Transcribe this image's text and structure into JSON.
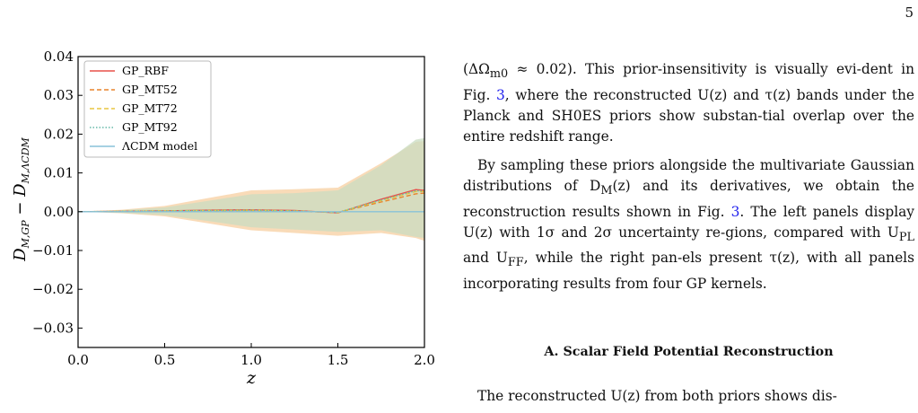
{
  "page": {
    "number": "5"
  },
  "figure": {
    "chart_data": {
      "type": "line",
      "xlabel": "z",
      "ylabel": "D_{M,GP} − D_{M,ΛCDM}",
      "xlim": [
        0.0,
        2.0
      ],
      "ylim": [
        -0.035,
        0.04
      ],
      "xticks": [
        "0.0",
        "0.5",
        "1.0",
        "1.5",
        "2.0"
      ],
      "yticks": [
        "0.04",
        "0.03",
        "0.02",
        "0.01",
        "0.00",
        "−0.01",
        "−0.02",
        "−0.03"
      ],
      "legend_position": "top-left",
      "x": [
        0.0,
        0.25,
        0.5,
        0.75,
        1.0,
        1.25,
        1.5,
        1.75,
        1.95,
        2.0
      ],
      "series": [
        {
          "name": "GP_RBF",
          "color": "#e8504a",
          "dash": "solid",
          "values": [
            0,
            0.0001,
            0.0002,
            0.0004,
            0.0005,
            0.0003,
            -0.0003,
            0.0032,
            0.0057,
            0.0055
          ]
        },
        {
          "name": "GP_MT52",
          "color": "#e8842a",
          "dash": "dashed",
          "values": [
            0,
            0.0,
            0.0001,
            0.0002,
            0.0003,
            0.0001,
            -0.0002,
            0.0025,
            0.0046,
            0.0048
          ]
        },
        {
          "name": "GP_MT72",
          "color": "#e8c640",
          "dash": "dashed",
          "values": [
            0,
            0.0001,
            0.0002,
            0.0003,
            0.0004,
            0.0002,
            -0.0002,
            0.0029,
            0.0052,
            0.0052
          ]
        },
        {
          "name": "GP_MT92",
          "color": "#67b9a8",
          "dash": "dotted",
          "values": [
            0,
            0.0001,
            0.0002,
            0.0003,
            0.0004,
            0.0002,
            -0.0002,
            0.003,
            0.0054,
            0.0053
          ]
        },
        {
          "name": "ΛCDM model",
          "color": "#88c2d8",
          "dash": "solid",
          "values": [
            0,
            0,
            0,
            0,
            0,
            0,
            0,
            0,
            0,
            0
          ]
        }
      ],
      "bands": [
        {
          "color": "#f7cfa0",
          "upper": [
            0,
            0.0005,
            0.0015,
            0.0035,
            0.0055,
            0.0058,
            0.0062,
            0.0125,
            0.018,
            0.0182
          ],
          "lower": [
            0,
            -0.0004,
            -0.0012,
            -0.003,
            -0.0048,
            -0.0055,
            -0.0062,
            -0.0055,
            -0.0068,
            -0.0075
          ]
        },
        {
          "color": "#c9dcc1",
          "upper": [
            0,
            0.0004,
            0.0011,
            0.0028,
            0.0045,
            0.0048,
            0.0055,
            0.012,
            0.0186,
            0.019
          ],
          "lower": [
            0,
            -0.0003,
            -0.0009,
            -0.0024,
            -0.004,
            -0.0046,
            -0.0052,
            -0.0048,
            -0.0065,
            -0.0068
          ]
        }
      ]
    }
  },
  "text": {
    "p1_a": "(ΔΩ",
    "p1_sub": "m0",
    "p1_b": " ≈ 0.02). This prior-insensitivity is visually evi-dent in Fig. ",
    "p1_ref": "3",
    "p1_c": ", where the reconstructed U(z) and τ(z) bands under the Planck and SH0ES priors show substan-tial overlap over the entire redshift range.",
    "p2_a": "By sampling these priors alongside the multivariate Gaussian distributions of D",
    "p2_sub": "M",
    "p2_b": "(z) and its derivatives, we obtain the reconstruction results shown in Fig. ",
    "p2_ref": "3",
    "p2_c": ". The left panels display U(z) with 1σ and 2σ uncertainty re-gions, compared with U",
    "p2_sub2": "PL",
    "p2_d": " and U",
    "p2_sub3": "FF",
    "p2_e": ", while the right pan-els present τ(z), with all panels incorporating results from four GP kernels.",
    "section_heading": "A.   Scalar Field Potential Reconstruction",
    "p3": "The reconstructed U(z) from both priors shows dis-"
  }
}
